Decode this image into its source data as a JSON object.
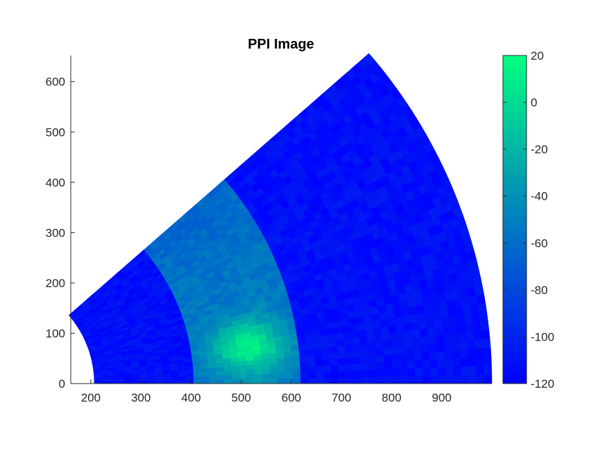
{
  "chart_data": {
    "type": "heatmap",
    "subtype": "ppi-sector",
    "title": "PPI Image",
    "xlabel": "",
    "ylabel": "",
    "xlim": [
      160,
      1000
    ],
    "ylim": [
      0,
      652
    ],
    "xticks": [
      200,
      300,
      400,
      500,
      600,
      700,
      800,
      900
    ],
    "yticks": [
      0,
      100,
      200,
      300,
      400,
      500,
      600
    ],
    "sector": {
      "range_min": 207,
      "range_max": 1000,
      "azimuth_min_deg": 0,
      "azimuth_max_deg": 41
    },
    "regions": [
      {
        "name": "background-near",
        "range": [
          207,
          405
        ],
        "level_dB": -112
      },
      {
        "name": "clutter-band",
        "range": [
          405,
          615
        ],
        "level_dB": -55
      },
      {
        "name": "background-far",
        "range": [
          615,
          1000
        ],
        "level_dB": -112
      }
    ],
    "hotspot": {
      "range_center": 520,
      "azimuth_center_deg": 8,
      "peak_dB": 12
    },
    "colorbar": {
      "limits": [
        -120,
        20
      ],
      "ticks": [
        -120,
        -100,
        -80,
        -60,
        -40,
        -20,
        0,
        20
      ],
      "colors": [
        "#0000ff",
        "#00ff80"
      ]
    }
  }
}
